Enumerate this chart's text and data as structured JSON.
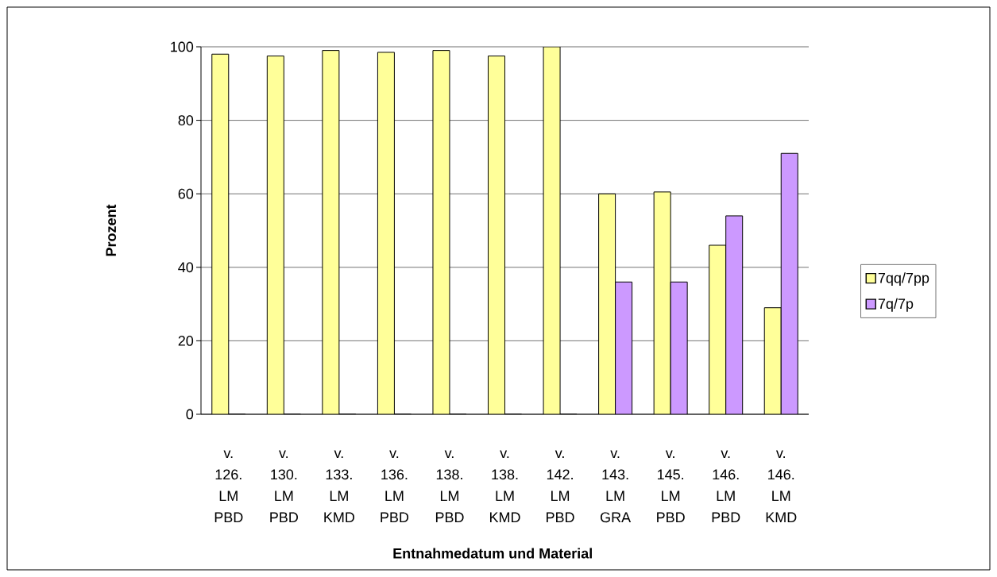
{
  "chart_data": {
    "type": "bar",
    "xlabel": "Entnahmedatum und Material",
    "ylabel": "Prozent",
    "categories": [
      "v. 126. LM PBD",
      "v. 130. LM PBD",
      "v. 133. LM KMD",
      "v. 136. LM PBD",
      "v. 138. LM PBD",
      "v. 138. LM KMD",
      "v. 142. LM PBD",
      "v. 143. LM GRA",
      "v. 145. LM PBD",
      "v. 146. LM PBD",
      "v. 146. LM KMD"
    ],
    "series": [
      {
        "name": "7qq/7pp",
        "color": "#ffff99",
        "values": [
          98,
          97.5,
          99,
          98.5,
          99,
          97.5,
          100,
          60,
          60.5,
          46,
          29
        ]
      },
      {
        "name": "7q/7p",
        "color": "#cc99ff",
        "values": [
          0,
          0,
          0,
          0,
          0,
          0,
          0,
          36,
          36,
          54,
          71
        ]
      }
    ],
    "ylim": [
      0,
      100
    ],
    "yticks": [
      0,
      20,
      40,
      60,
      80,
      100
    ],
    "grid": "y",
    "legend": "right"
  }
}
